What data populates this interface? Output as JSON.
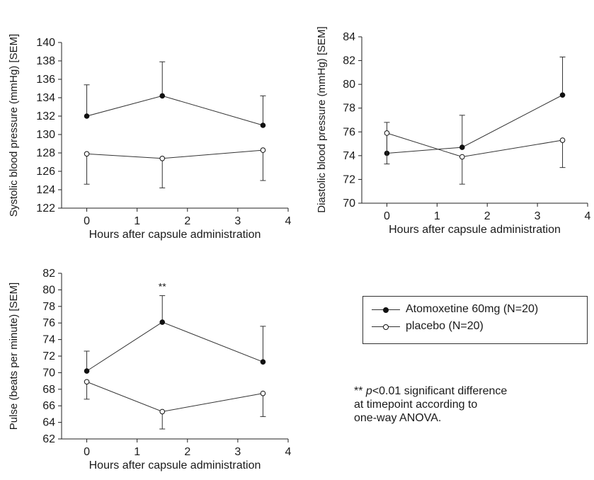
{
  "chart_data": [
    {
      "type": "line",
      "xlabel": "Hours after capsule administration",
      "ylabel": "Systolic blood pressure (mmHg) [SEM]",
      "xlim": [
        -0.5,
        4
      ],
      "ylim": [
        122,
        140
      ],
      "xticks": [
        0,
        1,
        2,
        3,
        4
      ],
      "yticks": [
        122,
        124,
        126,
        128,
        130,
        132,
        134,
        136,
        138,
        140
      ],
      "x": [
        0,
        1.5,
        3.5
      ],
      "series": [
        {
          "name": "Atomoxetine 60mg (N=20)",
          "marker": "filled",
          "values": [
            132.0,
            134.2,
            131.0
          ],
          "err": [
            3.4,
            3.7,
            3.2
          ]
        },
        {
          "name": "placebo (N=20)",
          "marker": "open",
          "values": [
            127.9,
            127.4,
            128.3
          ],
          "err": [
            3.3,
            3.2,
            3.3
          ]
        }
      ],
      "annotations": []
    },
    {
      "type": "line",
      "xlabel": "Hours after capsule administration",
      "ylabel": "Diastolic blood pressure (mmHg) [SEM]",
      "xlim": [
        -0.5,
        4
      ],
      "ylim": [
        70,
        84
      ],
      "xticks": [
        0,
        1,
        2,
        3,
        4
      ],
      "yticks": [
        70,
        72,
        74,
        76,
        78,
        80,
        82,
        84
      ],
      "x": [
        0,
        1.5,
        3.5
      ],
      "series": [
        {
          "name": "Atomoxetine 60mg (N=20)",
          "marker": "filled",
          "values": [
            74.2,
            74.7,
            79.1
          ],
          "err": [
            2.6,
            2.7,
            3.2
          ]
        },
        {
          "name": "placebo (N=20)",
          "marker": "open",
          "values": [
            75.9,
            73.9,
            75.3
          ],
          "err": [
            2.6,
            2.3,
            2.3
          ]
        }
      ],
      "annotations": []
    },
    {
      "type": "line",
      "xlabel": "Hours after capsule administration",
      "ylabel": "Pulse (beats per minute) [SEM]",
      "xlim": [
        -0.5,
        4
      ],
      "ylim": [
        62,
        82
      ],
      "xticks": [
        0,
        1,
        2,
        3,
        4
      ],
      "yticks": [
        62,
        64,
        66,
        68,
        70,
        72,
        74,
        76,
        78,
        80,
        82
      ],
      "x": [
        0,
        1.5,
        3.5
      ],
      "series": [
        {
          "name": "Atomoxetine 60mg (N=20)",
          "marker": "filled",
          "values": [
            70.2,
            76.1,
            71.3
          ],
          "err": [
            2.4,
            3.2,
            4.3
          ]
        },
        {
          "name": "placebo (N=20)",
          "marker": "open",
          "values": [
            68.9,
            65.3,
            67.5
          ],
          "err": [
            2.1,
            2.1,
            2.8
          ]
        }
      ],
      "annotations": [
        {
          "x": 1.5,
          "text": "**"
        }
      ]
    }
  ],
  "legend": {
    "items": [
      {
        "label": "Atomoxetine 60mg (N=20)",
        "marker": "filled"
      },
      {
        "label": "placebo (N=20)",
        "marker": "open"
      }
    ]
  },
  "footnote": {
    "stars": "**",
    "p": "p",
    "text1": "<0.01 significant difference",
    "text2": "at timepoint according to",
    "text3": "one-way ANOVA."
  },
  "colors": {
    "line": "#333333",
    "filled_marker": "#111111",
    "open_marker_fill": "#ffffff"
  }
}
